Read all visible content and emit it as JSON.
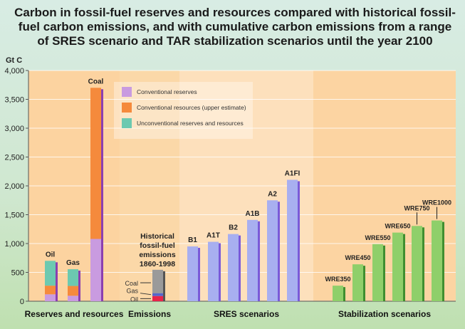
{
  "chart_data": {
    "type": "bar",
    "title": "Carbon in fossil-fuel reserves and resources compared with historical fossil-fuel carbon emissions, and with cumulative carbon emissions from a range of SRES scenario and TAR stabilization scenarios until the year 2100",
    "ylabel": "Gt C",
    "ylim": [
      0,
      4000
    ],
    "yticks": [
      "0",
      "500",
      "1,000",
      "1,500",
      "2,000",
      "2,500",
      "3,000",
      "3,500",
      "4,000"
    ],
    "ytick_values": [
      0,
      500,
      1000,
      1500,
      2000,
      2500,
      3000,
      3500,
      4000
    ],
    "grid": true,
    "legend_position": "top-center",
    "legend": [
      {
        "label": "Conventional reserves",
        "color": "#c99be0"
      },
      {
        "label": "Conventional resources (upper estimate)",
        "color": "#f58a3c"
      },
      {
        "label": "Unconventional reserves and resources",
        "color": "#6cc9b0"
      }
    ],
    "groups": [
      {
        "label": "Reserves and resources",
        "bars": [
          {
            "label": "Oil",
            "segments": [
              120,
              150,
              430
            ],
            "colors": [
              "#c99be0",
              "#f58a3c",
              "#6cc9b0"
            ]
          },
          {
            "label": "Gas",
            "segments": [
              95,
              170,
              290
            ],
            "colors": [
              "#c99be0",
              "#f58a3c",
              "#6cc9b0"
            ]
          },
          {
            "label": "Coal",
            "segments": [
              1080,
              2620
            ],
            "colors": [
              "#c99be0",
              "#f58a3c"
            ]
          }
        ]
      },
      {
        "label": "Emissions",
        "annotation": [
          "Historical",
          "fossil-fuel",
          "emissions",
          "1860-1998"
        ],
        "segment_labels": [
          "Oil",
          "Gas",
          "Coal"
        ],
        "bars": [
          {
            "label": "",
            "segments": [
              90,
              50,
              405
            ],
            "colors": [
              "#e8244a",
              "#5566cc",
              "#9a9a9a"
            ]
          }
        ]
      },
      {
        "label": "SRES scenarios",
        "bars": [
          {
            "label": "B1",
            "value": 950
          },
          {
            "label": "A1T",
            "value": 1030
          },
          {
            "label": "B2",
            "value": 1165
          },
          {
            "label": "A1B",
            "value": 1410
          },
          {
            "label": "A2",
            "value": 1750
          },
          {
            "label": "A1FI",
            "value": 2105
          }
        ],
        "color": "#a8aff0"
      },
      {
        "label": "Stabilization scenarios",
        "bars": [
          {
            "label": "WRE350",
            "value": 270
          },
          {
            "label": "WRE450",
            "value": 640
          },
          {
            "label": "WRE550",
            "value": 990
          },
          {
            "label": "WRE650",
            "value": 1190
          },
          {
            "label": "WRE750",
            "value": 1305
          },
          {
            "label": "WRE1000",
            "value": 1400
          }
        ],
        "color": "#8fcf6a"
      }
    ]
  }
}
